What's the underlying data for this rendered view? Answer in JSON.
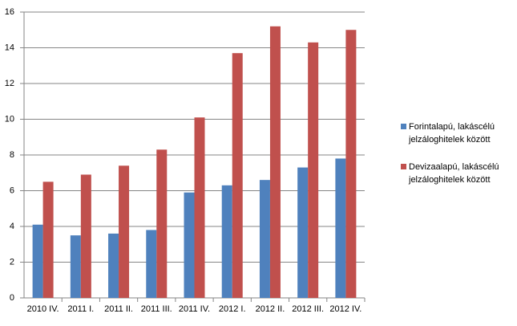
{
  "chart_data": {
    "type": "bar",
    "categories": [
      "2010 IV.",
      "2011 I.",
      "2011 II.",
      "2011 III.",
      "2011 IV.",
      "2012 I.",
      "2012 II.",
      "2012 III.",
      "2012 IV."
    ],
    "series": [
      {
        "name": "Forintalapú, lakáscélú jelzáloghitelek között",
        "color": "#4f81bd",
        "values": [
          4.1,
          3.5,
          3.6,
          3.8,
          5.9,
          6.3,
          6.6,
          7.3,
          7.8
        ]
      },
      {
        "name": "Devizaalapú, lakáscélú jelzáloghitelek között",
        "color": "#c0504d",
        "values": [
          6.5,
          6.9,
          7.4,
          8.3,
          10.1,
          13.7,
          15.2,
          14.3,
          15.0
        ]
      }
    ],
    "ylim": [
      0,
      16
    ],
    "yticks": [
      0,
      2,
      4,
      6,
      8,
      10,
      12,
      14,
      16
    ],
    "grid": true,
    "legend": "right"
  }
}
